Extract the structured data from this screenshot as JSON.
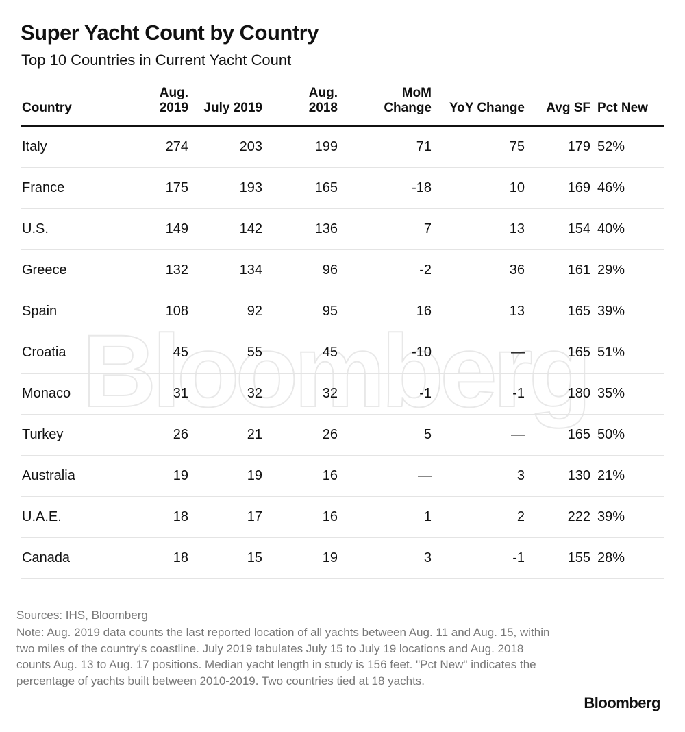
{
  "header": {
    "title": "Super Yacht Count by Country",
    "subtitle": "Top 10 Countries in Current Yacht Count"
  },
  "table": {
    "columns": [
      "Country",
      "Aug. 2019",
      "July 2019",
      "Aug. 2018",
      "MoM Change",
      "YoY Change",
      "Avg SF",
      "Pct New"
    ],
    "rows": [
      [
        "Italy",
        "274",
        "203",
        "199",
        "71",
        "75",
        "179",
        "52%"
      ],
      [
        "France",
        "175",
        "193",
        "165",
        "-18",
        "10",
        "169",
        "46%"
      ],
      [
        "U.S.",
        "149",
        "142",
        "136",
        "7",
        "13",
        "154",
        "40%"
      ],
      [
        "Greece",
        "132",
        "134",
        "96",
        "-2",
        "36",
        "161",
        "29%"
      ],
      [
        "Spain",
        "108",
        "92",
        "95",
        "16",
        "13",
        "165",
        "39%"
      ],
      [
        "Croatia",
        "45",
        "55",
        "45",
        "-10",
        "—",
        "165",
        "51%"
      ],
      [
        "Monaco",
        "31",
        "32",
        "32",
        "-1",
        "-1",
        "180",
        "35%"
      ],
      [
        "Turkey",
        "26",
        "21",
        "26",
        "5",
        "—",
        "165",
        "50%"
      ],
      [
        "Australia",
        "19",
        "19",
        "16",
        "—",
        "3",
        "130",
        "21%"
      ],
      [
        "U.A.E.",
        "18",
        "17",
        "16",
        "1",
        "2",
        "222",
        "39%"
      ],
      [
        "Canada",
        "18",
        "15",
        "19",
        "3",
        "-1",
        "155",
        "28%"
      ]
    ]
  },
  "watermark": "Bloomberg",
  "footer": {
    "sources": "Sources: IHS, Bloomberg",
    "note": "Note: Aug. 2019 data counts the last reported location of all yachts between Aug. 11 and Aug. 15, within two miles of the country's coastline. July 2019 tabulates July 15 to July 19 locations and Aug. 2018 counts Aug. 13 to Aug. 17 positions. Median yacht length in study is 156 feet. \"Pct New\" indicates the percentage of yachts built between 2010-2019. Two countries tied at 18 yachts.",
    "logo": "Bloomberg"
  }
}
